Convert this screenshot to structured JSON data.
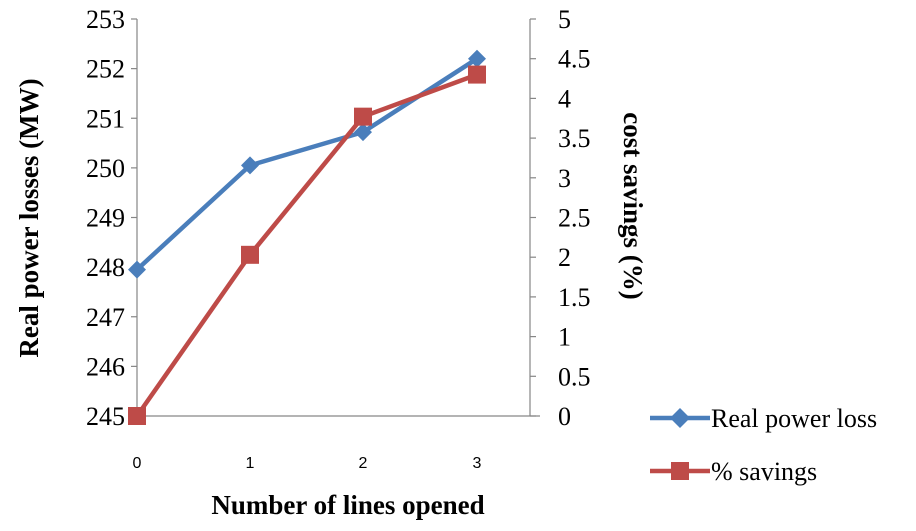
{
  "chart_data": {
    "type": "line",
    "categories": [
      "0",
      "1",
      "2",
      "3"
    ],
    "x": [
      0,
      1,
      2,
      3
    ],
    "xlabel": "Number of lines opened",
    "ylabel_left": "Real power losses (MW)",
    "ylabel_right": "cost savings (%)",
    "ylim_left": [
      245,
      253
    ],
    "ylim_right": [
      0,
      5
    ],
    "yticks_left": [
      "245",
      "246",
      "247",
      "248",
      "249",
      "250",
      "251",
      "252",
      "253"
    ],
    "yticks_right": [
      "0",
      "0.5",
      "1",
      "1.5",
      "2",
      "2.5",
      "3",
      "3.5",
      "4",
      "4.5",
      "5"
    ],
    "grid": false,
    "legend_position": "bottom-right",
    "series": [
      {
        "name": "Real power loss",
        "axis": "left",
        "marker": "diamond",
        "color": "#4a7ebb",
        "values": [
          247.95,
          250.05,
          250.72,
          252.2
        ]
      },
      {
        "name": "% savings",
        "axis": "right",
        "marker": "square",
        "color": "#be4b48",
        "values": [
          0.0,
          2.03,
          3.77,
          4.3
        ]
      }
    ]
  }
}
